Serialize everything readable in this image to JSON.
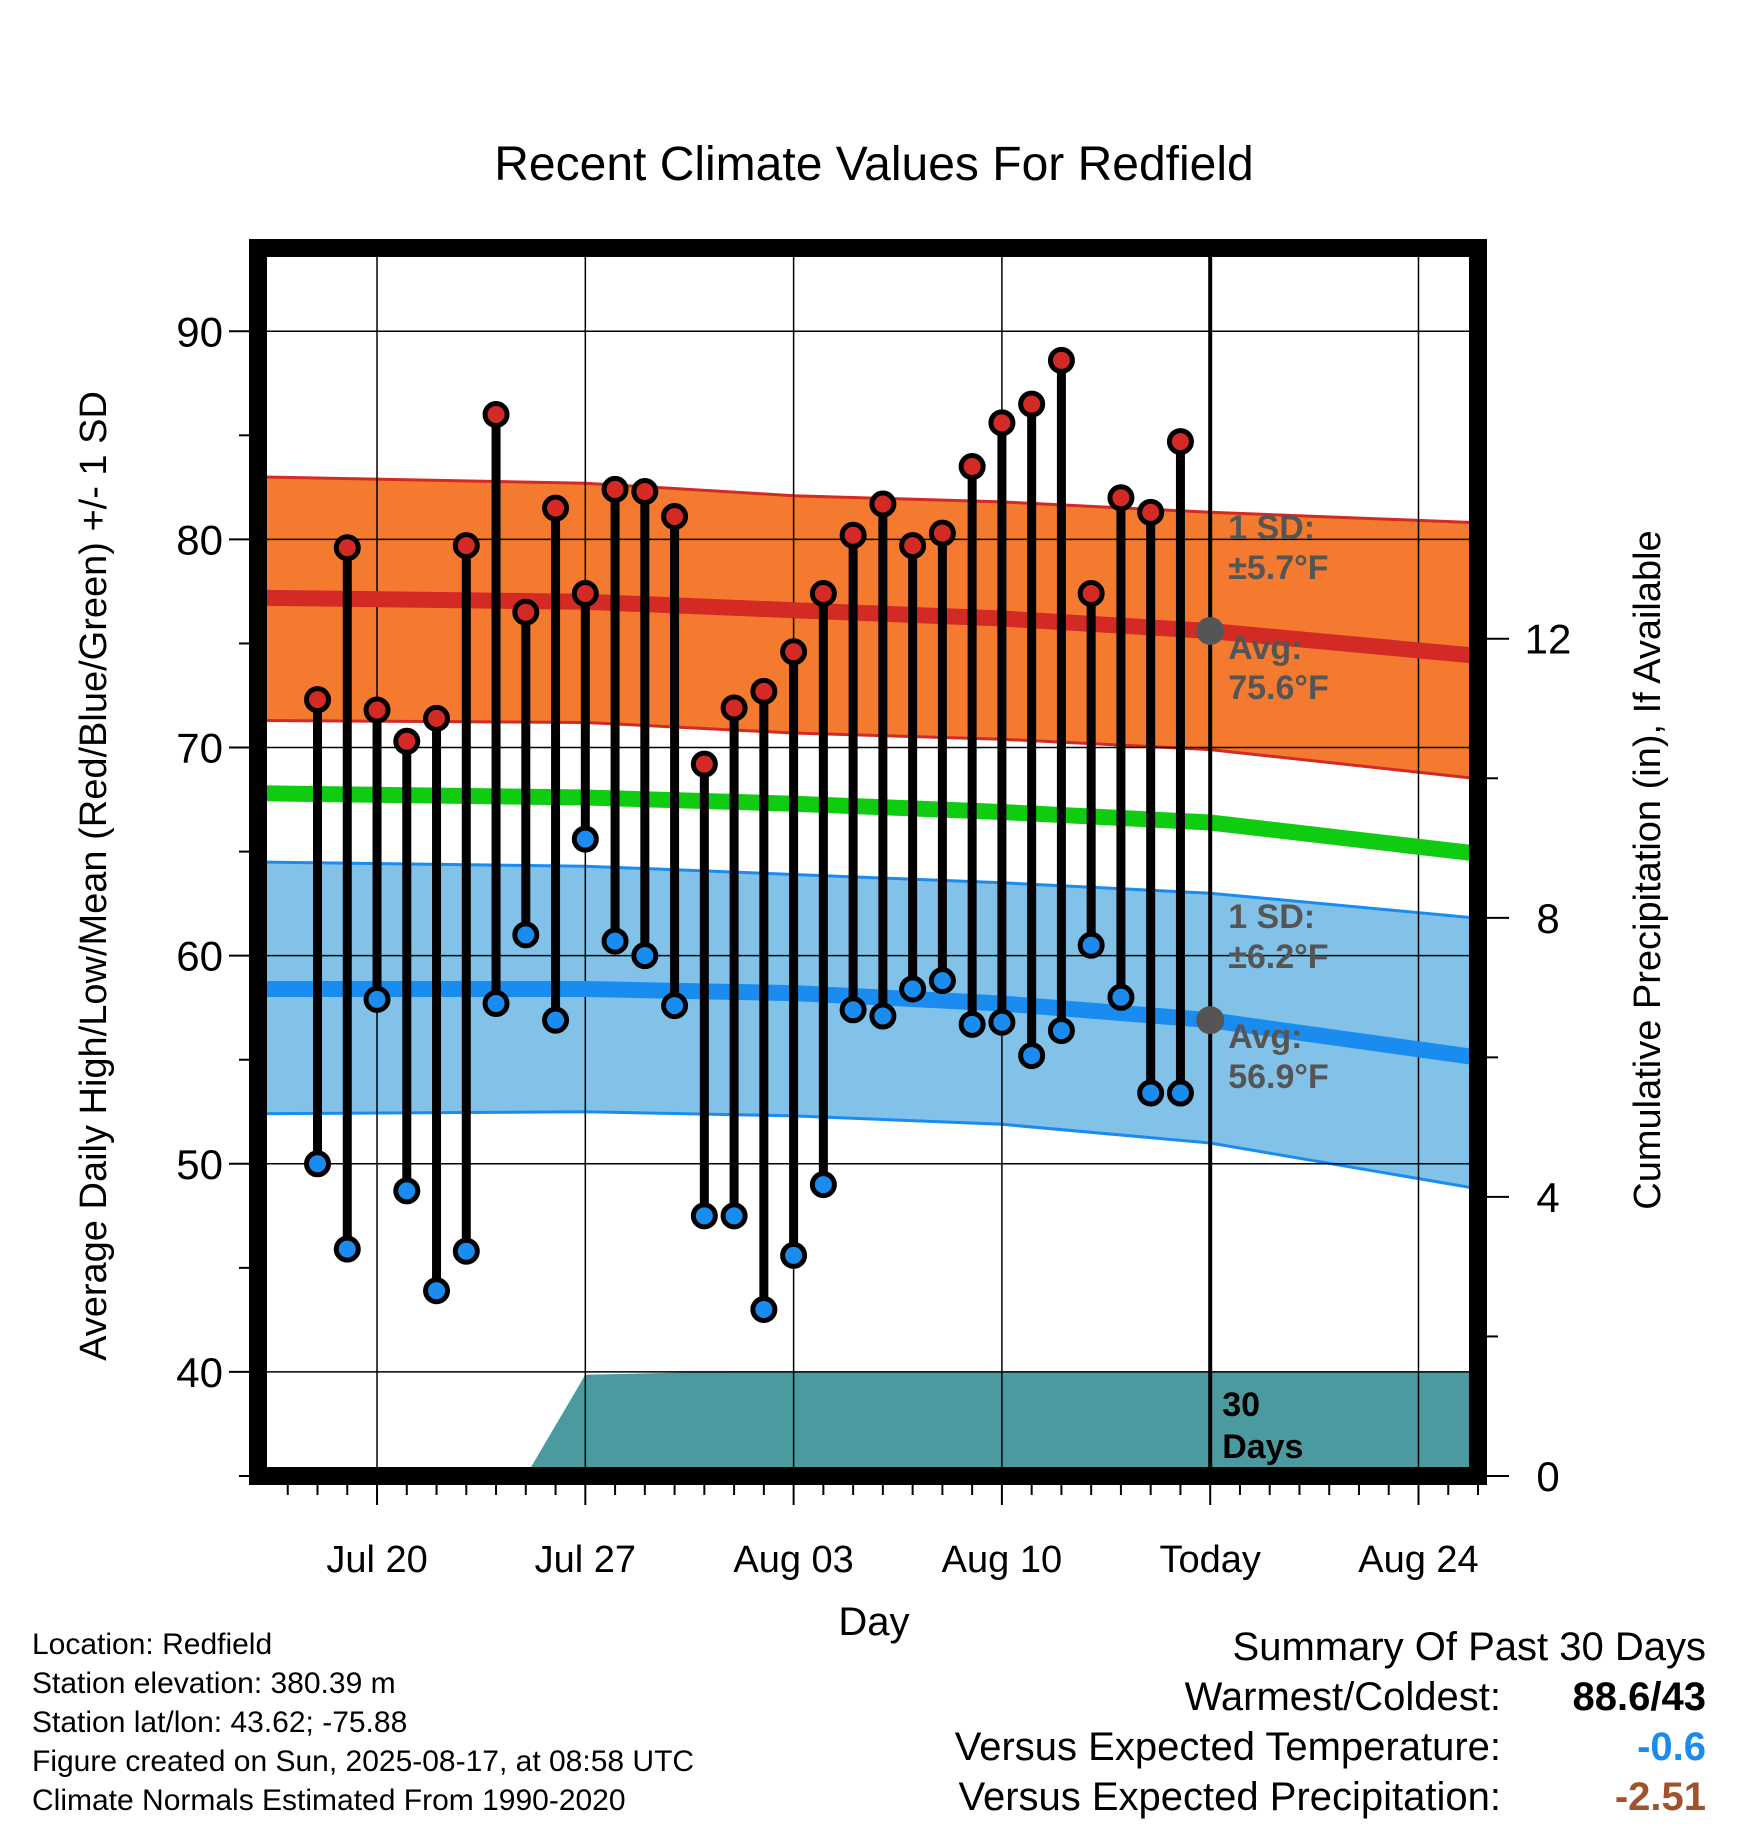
{
  "chart_data": {
    "type": "line",
    "title": "Recent Climate Values For Redfield",
    "xlabel": "Day",
    "ylabel": "Average Daily High/Low/Mean (Red/Blue/Green) +/- 1 SD",
    "y2label": "Cumulative Precipitation (in), If Available",
    "ylim": [
      35,
      94
    ],
    "y2lim": [
      0,
      17.6
    ],
    "yticks": [
      40,
      50,
      60,
      70,
      80,
      90
    ],
    "y2ticks": [
      0,
      4,
      8,
      12
    ],
    "xticks": [
      {
        "date": "2025-07-20",
        "label": "Jul 20"
      },
      {
        "date": "2025-07-27",
        "label": "Jul 27"
      },
      {
        "date": "2025-08-03",
        "label": "Aug 03"
      },
      {
        "date": "2025-08-10",
        "label": "Aug 10"
      },
      {
        "date": "2025-08-17",
        "label": "Today"
      },
      {
        "date": "2025-08-24",
        "label": "Aug 24"
      }
    ],
    "xlim": [
      "2025-07-16",
      "2025-08-26"
    ],
    "grid": true,
    "daily_observations": {
      "dates": [
        "2025-07-18",
        "2025-07-19",
        "2025-07-20",
        "2025-07-21",
        "2025-07-22",
        "2025-07-23",
        "2025-07-24",
        "2025-07-25",
        "2025-07-26",
        "2025-07-27",
        "2025-07-28",
        "2025-07-29",
        "2025-07-30",
        "2025-07-31",
        "2025-08-01",
        "2025-08-02",
        "2025-08-03",
        "2025-08-04",
        "2025-08-05",
        "2025-08-06",
        "2025-08-07",
        "2025-08-08",
        "2025-08-09",
        "2025-08-10",
        "2025-08-11",
        "2025-08-12",
        "2025-08-13",
        "2025-08-14",
        "2025-08-15",
        "2025-08-16"
      ],
      "high": [
        72.3,
        79.6,
        71.8,
        70.3,
        71.4,
        79.7,
        86.0,
        76.5,
        81.5,
        77.4,
        82.4,
        82.3,
        81.1,
        69.2,
        71.9,
        72.7,
        74.6,
        77.4,
        80.2,
        81.7,
        79.7,
        80.3,
        83.5,
        85.6,
        86.5,
        88.6,
        77.4,
        82.0,
        81.3,
        84.7
      ],
      "low": [
        50.0,
        45.9,
        57.9,
        48.7,
        43.9,
        45.8,
        57.7,
        61.0,
        56.9,
        65.6,
        60.7,
        60.0,
        57.6,
        47.5,
        47.5,
        43.0,
        45.6,
        49.0,
        57.4,
        57.1,
        58.4,
        58.8,
        56.7,
        56.8,
        55.2,
        56.4,
        60.5,
        58.0,
        53.4,
        53.4
      ]
    },
    "normals": {
      "dates": [
        "2025-07-16",
        "2025-07-27",
        "2025-08-03",
        "2025-08-10",
        "2025-08-17",
        "2025-08-26"
      ],
      "avg_high": [
        77.2,
        77.0,
        76.6,
        76.2,
        75.6,
        74.4
      ],
      "high_plus_sd": [
        83.0,
        82.7,
        82.1,
        81.8,
        81.3,
        80.8
      ],
      "high_minus_sd": [
        71.3,
        71.2,
        70.7,
        70.4,
        69.9,
        68.5
      ],
      "avg_mean": [
        67.8,
        67.6,
        67.3,
        66.9,
        66.4,
        64.9
      ],
      "avg_low": [
        58.4,
        58.4,
        58.2,
        57.7,
        56.9,
        55.1
      ],
      "low_plus_sd": [
        64.5,
        64.3,
        63.9,
        63.5,
        63.0,
        61.8
      ],
      "low_minus_sd": [
        52.4,
        52.5,
        52.3,
        51.9,
        51.0,
        48.8
      ]
    },
    "precipitation": {
      "dates": [
        "2025-07-16",
        "2025-07-25",
        "2025-07-27",
        "2025-08-01",
        "2025-08-26"
      ],
      "cumulative": [
        0,
        0,
        1.45,
        1.5,
        1.5
      ]
    },
    "today_markers": {
      "high_label": "Avg:",
      "high_value": "75.6°F",
      "high_sd_label": "1 SD:",
      "high_sd_value": "±5.7°F",
      "low_label": "Avg:",
      "low_value": "56.9°F",
      "low_sd_label": "1 SD:",
      "low_sd_value": "±6.2°F"
    },
    "period_label_1": "30",
    "period_label_2": "Days",
    "colors": {
      "high_band": "#f47a30",
      "high_line": "#d32a26",
      "mean_line": "#10cc10",
      "low_band": "#82c2e8",
      "low_line": "#1a8cf0",
      "precip": "#4a9aa0",
      "high_dot": "#d32a26",
      "low_dot": "#1a8cf0",
      "marker": "#555555",
      "annot_text": "#555555"
    }
  },
  "footer": {
    "location": "Location: Redfield",
    "elevation": "Station elevation: 380.39 m",
    "latlon": "Station lat/lon: 43.62; -75.88",
    "created": "Figure created on Sun, 2025-08-17, at 08:58 UTC",
    "normals": "Climate Normals Estimated From 1990-2020"
  },
  "summary": {
    "heading": "Summary Of Past 30 Days",
    "warmest_label": "Warmest/Coldest:",
    "warmest_value": "88.6/43",
    "temp_label": "Versus Expected Temperature:",
    "temp_value": "-0.6",
    "temp_color": "#1a8cf0",
    "precip_label": "Versus Expected Precipitation:",
    "precip_value": "-2.51",
    "precip_color": "#a0522d"
  }
}
